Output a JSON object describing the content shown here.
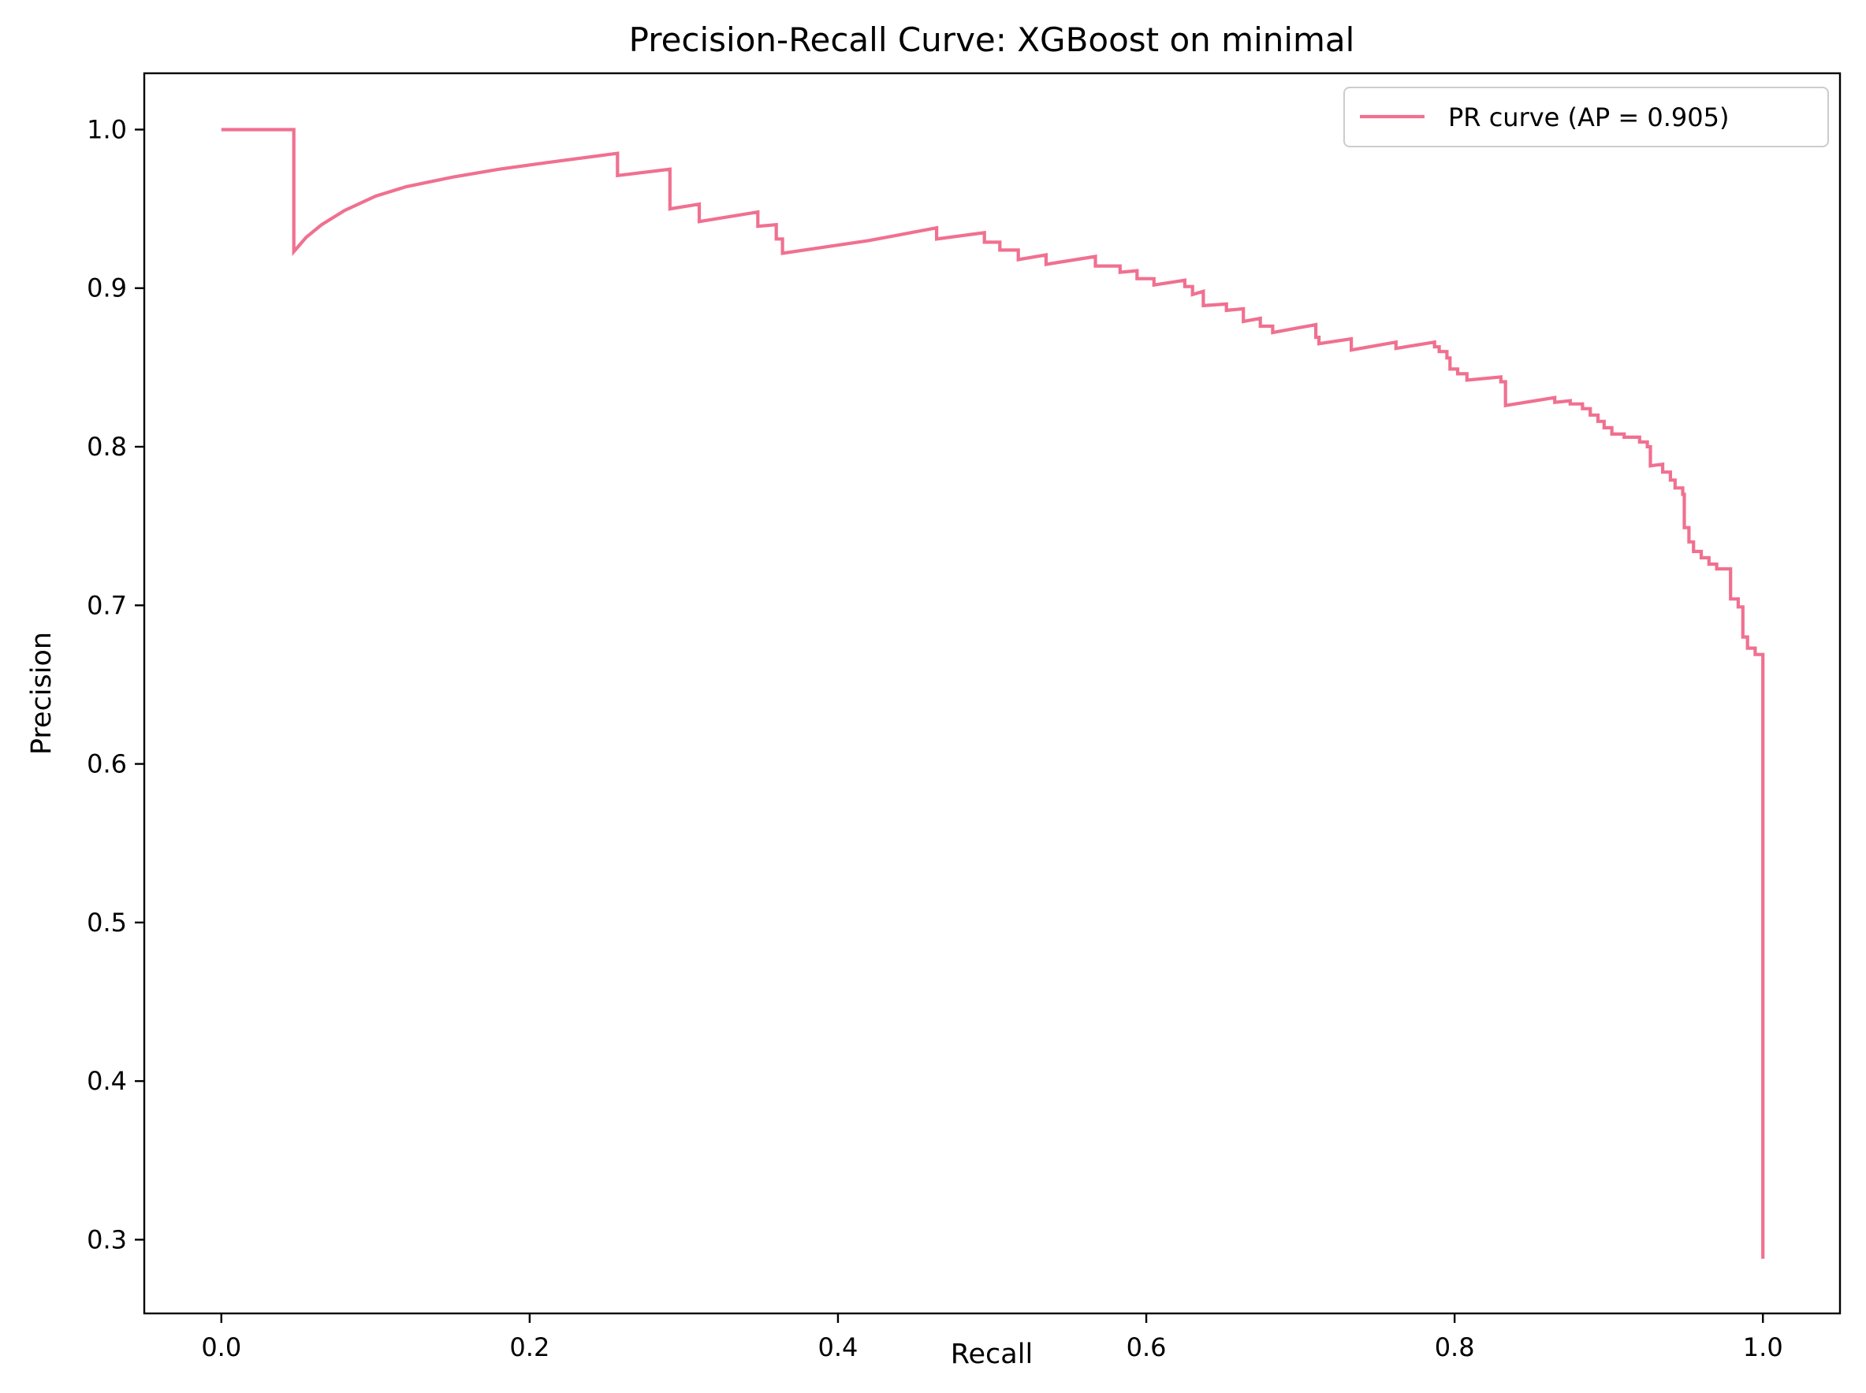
{
  "chart_data": {
    "type": "line",
    "title": "Precision-Recall Curve: XGBoost on minimal",
    "xlabel": "Recall",
    "ylabel": "Precision",
    "xlim": [
      -0.05,
      1.05
    ],
    "ylim": [
      0.2535,
      1.0355
    ],
    "x_ticks": [
      0.0,
      0.2,
      0.4,
      0.6,
      0.8,
      1.0
    ],
    "x_tick_labels": [
      "0.0",
      "0.2",
      "0.4",
      "0.6",
      "0.8",
      "1.0"
    ],
    "y_ticks": [
      0.3,
      0.4,
      0.5,
      0.6,
      0.7,
      0.8,
      0.9,
      1.0
    ],
    "y_tick_labels": [
      "0.3",
      "0.4",
      "0.5",
      "0.6",
      "0.7",
      "0.8",
      "0.9",
      "1.0"
    ],
    "grid": false,
    "legend_position": "top-right",
    "colors": {
      "series": "#f07090",
      "axis": "#000000"
    },
    "series": [
      {
        "name": "PR curve (AP = 0.905)",
        "color": "#f07090",
        "points": [
          [
            0.0,
            1.0
          ],
          [
            0.047,
            1.0
          ],
          [
            0.047,
            0.923
          ],
          [
            0.055,
            0.932
          ],
          [
            0.065,
            0.94
          ],
          [
            0.08,
            0.949
          ],
          [
            0.1,
            0.958
          ],
          [
            0.12,
            0.964
          ],
          [
            0.15,
            0.97
          ],
          [
            0.18,
            0.975
          ],
          [
            0.21,
            0.979
          ],
          [
            0.257,
            0.985
          ],
          [
            0.257,
            0.971
          ],
          [
            0.291,
            0.975
          ],
          [
            0.291,
            0.95
          ],
          [
            0.31,
            0.953
          ],
          [
            0.31,
            0.942
          ],
          [
            0.348,
            0.948
          ],
          [
            0.348,
            0.939
          ],
          [
            0.36,
            0.94
          ],
          [
            0.36,
            0.931
          ],
          [
            0.364,
            0.931
          ],
          [
            0.364,
            0.922
          ],
          [
            0.42,
            0.93
          ],
          [
            0.464,
            0.938
          ],
          [
            0.464,
            0.931
          ],
          [
            0.495,
            0.935
          ],
          [
            0.495,
            0.929
          ],
          [
            0.505,
            0.929
          ],
          [
            0.505,
            0.924
          ],
          [
            0.517,
            0.924
          ],
          [
            0.517,
            0.918
          ],
          [
            0.535,
            0.921
          ],
          [
            0.535,
            0.915
          ],
          [
            0.567,
            0.92
          ],
          [
            0.567,
            0.914
          ],
          [
            0.583,
            0.914
          ],
          [
            0.583,
            0.91
          ],
          [
            0.594,
            0.911
          ],
          [
            0.594,
            0.906
          ],
          [
            0.605,
            0.906
          ],
          [
            0.605,
            0.902
          ],
          [
            0.625,
            0.905
          ],
          [
            0.625,
            0.901
          ],
          [
            0.63,
            0.901
          ],
          [
            0.63,
            0.896
          ],
          [
            0.637,
            0.898
          ],
          [
            0.637,
            0.889
          ],
          [
            0.652,
            0.89
          ],
          [
            0.652,
            0.886
          ],
          [
            0.663,
            0.887
          ],
          [
            0.663,
            0.879
          ],
          [
            0.674,
            0.881
          ],
          [
            0.674,
            0.876
          ],
          [
            0.682,
            0.876
          ],
          [
            0.682,
            0.872
          ],
          [
            0.71,
            0.877
          ],
          [
            0.71,
            0.869
          ],
          [
            0.712,
            0.869
          ],
          [
            0.712,
            0.865
          ],
          [
            0.733,
            0.868
          ],
          [
            0.733,
            0.861
          ],
          [
            0.762,
            0.866
          ],
          [
            0.762,
            0.862
          ],
          [
            0.787,
            0.866
          ],
          [
            0.787,
            0.863
          ],
          [
            0.79,
            0.863
          ],
          [
            0.79,
            0.86
          ],
          [
            0.795,
            0.86
          ],
          [
            0.795,
            0.856
          ],
          [
            0.797,
            0.856
          ],
          [
            0.797,
            0.849
          ],
          [
            0.802,
            0.849
          ],
          [
            0.802,
            0.846
          ],
          [
            0.808,
            0.846
          ],
          [
            0.808,
            0.842
          ],
          [
            0.83,
            0.844
          ],
          [
            0.83,
            0.841
          ],
          [
            0.833,
            0.841
          ],
          [
            0.833,
            0.826
          ],
          [
            0.865,
            0.831
          ],
          [
            0.865,
            0.828
          ],
          [
            0.875,
            0.829
          ],
          [
            0.875,
            0.827
          ],
          [
            0.883,
            0.827
          ],
          [
            0.883,
            0.824
          ],
          [
            0.888,
            0.824
          ],
          [
            0.888,
            0.82
          ],
          [
            0.893,
            0.82
          ],
          [
            0.893,
            0.816
          ],
          [
            0.897,
            0.816
          ],
          [
            0.897,
            0.812
          ],
          [
            0.902,
            0.812
          ],
          [
            0.902,
            0.808
          ],
          [
            0.91,
            0.808
          ],
          [
            0.91,
            0.806
          ],
          [
            0.92,
            0.806
          ],
          [
            0.92,
            0.803
          ],
          [
            0.925,
            0.803
          ],
          [
            0.925,
            0.8
          ],
          [
            0.927,
            0.8
          ],
          [
            0.927,
            0.788
          ],
          [
            0.935,
            0.789
          ],
          [
            0.935,
            0.784
          ],
          [
            0.94,
            0.784
          ],
          [
            0.94,
            0.779
          ],
          [
            0.943,
            0.779
          ],
          [
            0.943,
            0.774
          ],
          [
            0.948,
            0.774
          ],
          [
            0.948,
            0.77
          ],
          [
            0.949,
            0.77
          ],
          [
            0.949,
            0.749
          ],
          [
            0.952,
            0.749
          ],
          [
            0.952,
            0.74
          ],
          [
            0.955,
            0.74
          ],
          [
            0.955,
            0.734
          ],
          [
            0.96,
            0.734
          ],
          [
            0.96,
            0.73
          ],
          [
            0.965,
            0.73
          ],
          [
            0.965,
            0.726
          ],
          [
            0.97,
            0.726
          ],
          [
            0.97,
            0.723
          ],
          [
            0.979,
            0.723
          ],
          [
            0.979,
            0.704
          ],
          [
            0.984,
            0.704
          ],
          [
            0.984,
            0.699
          ],
          [
            0.987,
            0.699
          ],
          [
            0.987,
            0.68
          ],
          [
            0.99,
            0.68
          ],
          [
            0.99,
            0.673
          ],
          [
            0.995,
            0.673
          ],
          [
            0.995,
            0.669
          ],
          [
            1.0,
            0.669
          ],
          [
            1.0,
            0.288
          ]
        ]
      }
    ]
  }
}
